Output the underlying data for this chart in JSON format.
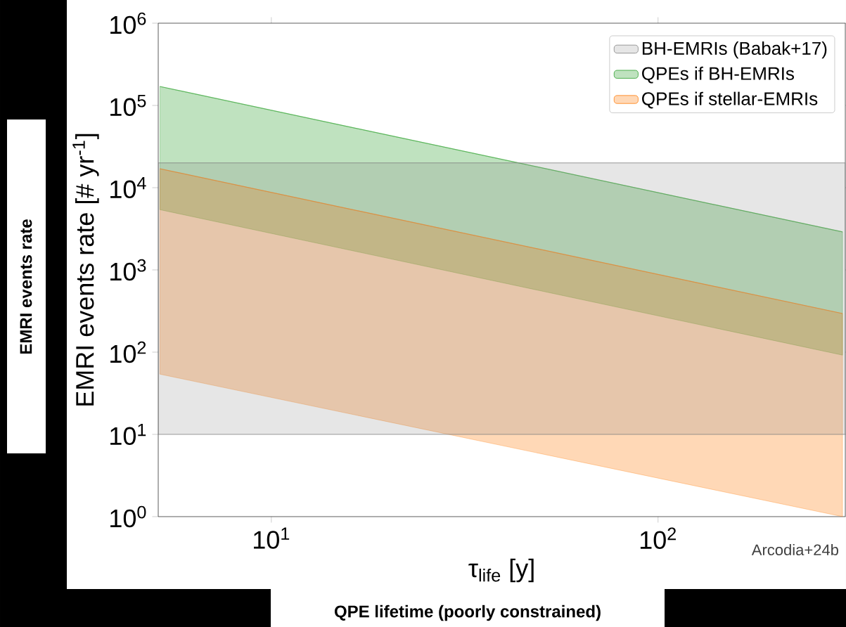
{
  "chart_data": {
    "type": "line",
    "xlabel": "τ$_{life}$  [y]",
    "ylabel": "EMRI events rate  [# yr$^{-1}$]",
    "log": "xy",
    "x": [
      5.15,
      300
    ],
    "xlim": [
      5.1,
      305
    ],
    "ylim": [
      1,
      1000000
    ],
    "xticks": [
      {
        "value": 10,
        "label": "10$^{1}$"
      },
      {
        "value": 100,
        "label": "10$^{2}$"
      }
    ],
    "yticks": [
      {
        "value": 1,
        "label": "10$^{0}$"
      },
      {
        "value": 10,
        "label": "10$^{1}$"
      },
      {
        "value": 100,
        "label": "10$^{2}$"
      },
      {
        "value": 1000,
        "label": "10$^{3}$"
      },
      {
        "value": 10000,
        "label": "10$^{4}$"
      },
      {
        "value": 100000,
        "label": "10$^{5}$"
      },
      {
        "value": 1000000,
        "label": "10$^{6}$"
      }
    ],
    "series": [
      {
        "name": "QPEs if BH-EMRIs",
        "color": "#2ca02c",
        "values": [
          170000,
          2900
        ],
        "lower": [
          5400,
          92
        ],
        "upper": [
          170000,
          2900
        ]
      },
      {
        "name": "QPEs if stellar-EMRIs",
        "color": "#ff7f0e",
        "values": [
          17000,
          295
        ],
        "lower": [
          54,
          1.0
        ],
        "upper": [
          17000,
          295
        ]
      }
    ],
    "bands": [
      {
        "axis": "y",
        "from": 10,
        "to": 20000,
        "label": "BH-EMRIs (Babak+17)",
        "color": "#808080"
      }
    ],
    "legend": "top right",
    "annotations": [
      "EMRI events rate",
      "QPE lifetime (poorly constrained)",
      "Arcodia+24b"
    ]
  }
}
